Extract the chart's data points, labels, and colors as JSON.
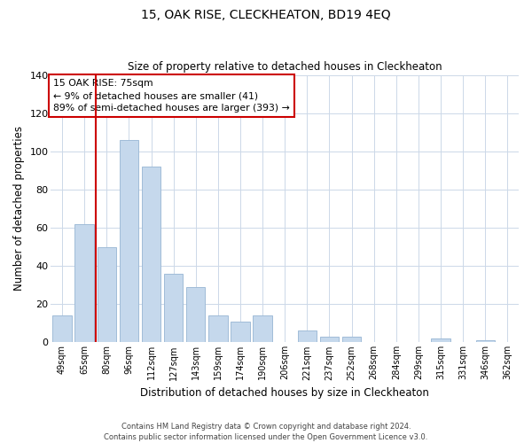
{
  "title": "15, OAK RISE, CLECKHEATON, BD19 4EQ",
  "subtitle": "Size of property relative to detached houses in Cleckheaton",
  "xlabel": "Distribution of detached houses by size in Cleckheaton",
  "ylabel": "Number of detached properties",
  "categories": [
    "49sqm",
    "65sqm",
    "80sqm",
    "96sqm",
    "112sqm",
    "127sqm",
    "143sqm",
    "159sqm",
    "174sqm",
    "190sqm",
    "206sqm",
    "221sqm",
    "237sqm",
    "252sqm",
    "268sqm",
    "284sqm",
    "299sqm",
    "315sqm",
    "331sqm",
    "346sqm",
    "362sqm"
  ],
  "values": [
    14,
    62,
    50,
    106,
    92,
    36,
    29,
    14,
    11,
    14,
    0,
    6,
    3,
    3,
    0,
    0,
    0,
    2,
    0,
    1,
    0
  ],
  "bar_color": "#c5d8ec",
  "bar_edge_color": "#a0bcd8",
  "vline_color": "#cc0000",
  "annotation_text_line1": "15 OAK RISE: 75sqm",
  "annotation_text_line2": "← 9% of detached houses are smaller (41)",
  "annotation_text_line3": "89% of semi-detached houses are larger (393) →",
  "box_edge_color": "#cc0000",
  "ylim": [
    0,
    140
  ],
  "yticks": [
    0,
    20,
    40,
    60,
    80,
    100,
    120,
    140
  ],
  "footer_line1": "Contains HM Land Registry data © Crown copyright and database right 2024.",
  "footer_line2": "Contains public sector information licensed under the Open Government Licence v3.0.",
  "background_color": "#ffffff",
  "grid_color": "#ccd8e8"
}
